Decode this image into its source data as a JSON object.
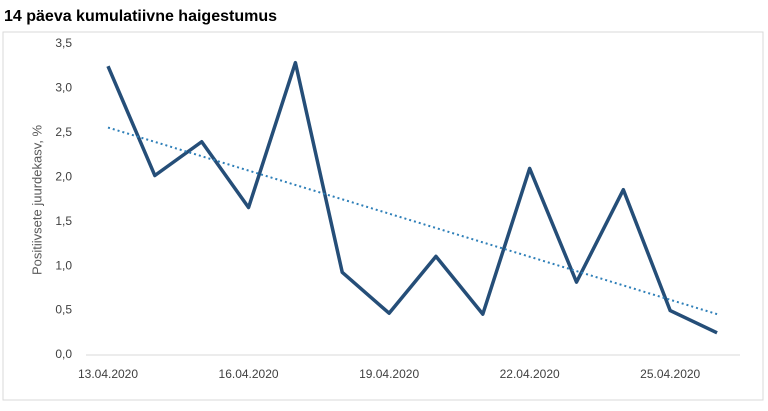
{
  "chart_data": {
    "type": "line",
    "title": "14 päeva kumulatiivne haigestumus",
    "y_label": "Positiivsete juurdekasv, %",
    "categories": [
      "13.04.2020",
      null,
      null,
      "16.04.2020",
      null,
      null,
      "19.04.2020",
      null,
      null,
      "22.04.2020",
      null,
      null,
      "25.04.2020",
      null
    ],
    "values": [
      3.25,
      2.02,
      2.4,
      1.66,
      3.29,
      0.93,
      0.47,
      1.11,
      0.46,
      2.1,
      0.82,
      1.86,
      0.5,
      0.25
    ],
    "color": "#254e78",
    "trendline": {
      "values": [
        2.56,
        0.46
      ],
      "color": "#2e7fb8"
    },
    "ylim": [
      0,
      3.5
    ],
    "yticks": [
      {
        "value": 0,
        "label": "0,0"
      },
      {
        "value": 0.5,
        "label": "0,5"
      },
      {
        "value": 1,
        "label": "1,0"
      },
      {
        "value": 1.5,
        "label": "1,5"
      },
      {
        "value": 2,
        "label": "2,0"
      },
      {
        "value": 2.5,
        "label": "2,5"
      },
      {
        "value": 3,
        "label": "3,0"
      },
      {
        "value": 3.5,
        "label": "3,5"
      }
    ],
    "grid": false
  }
}
